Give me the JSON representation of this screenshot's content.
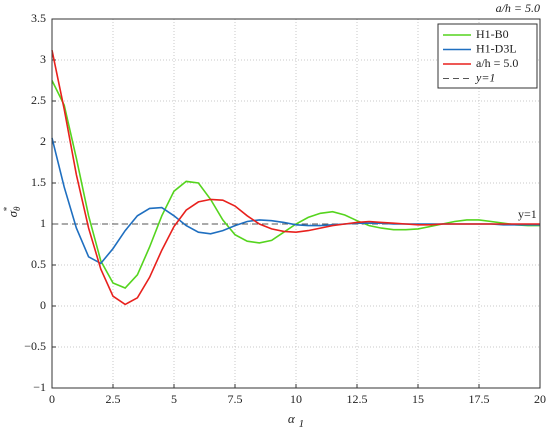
{
  "chart_data": {
    "type": "line",
    "title": "a/h = 5.0",
    "xlabel": {
      "symbol": "α",
      "sub": "1"
    },
    "ylabel": {
      "symbol": "σ",
      "sub": "θ",
      "sup": "*"
    },
    "x": [
      0,
      0.5,
      1,
      1.5,
      2,
      2.5,
      3,
      3.5,
      4,
      4.5,
      5,
      5.5,
      6,
      6.5,
      7,
      7.5,
      8,
      8.5,
      9,
      9.5,
      10,
      10.5,
      11,
      11.5,
      12,
      12.5,
      13,
      13.5,
      14,
      14.5,
      15,
      15.5,
      16,
      16.5,
      17,
      17.5,
      18,
      18.5,
      19,
      19.5,
      20
    ],
    "series": [
      {
        "name": "H1-B0",
        "color": "#55d41e",
        "values": [
          2.75,
          2.45,
          1.8,
          1.1,
          0.55,
          0.28,
          0.22,
          0.38,
          0.72,
          1.1,
          1.4,
          1.52,
          1.5,
          1.3,
          1.05,
          0.87,
          0.79,
          0.77,
          0.8,
          0.9,
          1.0,
          1.08,
          1.13,
          1.15,
          1.11,
          1.04,
          0.98,
          0.95,
          0.93,
          0.93,
          0.94,
          0.97,
          1.0,
          1.03,
          1.05,
          1.05,
          1.03,
          1.01,
          0.99,
          0.98,
          0.98
        ]
      },
      {
        "name": "H1-D3L",
        "color": "#1f6fc0",
        "values": [
          2.05,
          1.45,
          0.95,
          0.6,
          0.52,
          0.7,
          0.92,
          1.1,
          1.19,
          1.2,
          1.1,
          0.98,
          0.9,
          0.88,
          0.92,
          0.98,
          1.03,
          1.05,
          1.04,
          1.02,
          0.99,
          0.98,
          0.98,
          0.99,
          1.0,
          1.01,
          1.01,
          1.01,
          1.0,
          1.0,
          1.0,
          1.0,
          1.0,
          1.0,
          1.0,
          1.0,
          1.0,
          0.99,
          0.99,
          0.99,
          0.99
        ]
      },
      {
        "name": "a/h = 5.0",
        "color": "#e8211d",
        "values": [
          3.12,
          2.4,
          1.6,
          0.95,
          0.45,
          0.12,
          0.02,
          0.1,
          0.35,
          0.68,
          0.97,
          1.17,
          1.27,
          1.3,
          1.29,
          1.22,
          1.1,
          1.0,
          0.94,
          0.91,
          0.9,
          0.92,
          0.95,
          0.98,
          1.0,
          1.02,
          1.03,
          1.02,
          1.01,
          1.0,
          0.99,
          0.99,
          1.0,
          1.0,
          1.0,
          1.0,
          1.0,
          1.0,
          1.0,
          1.0,
          1.0
        ]
      }
    ],
    "reference_line": {
      "name": "y=1",
      "value": 1,
      "color": "#555555",
      "annotation": "y=1"
    },
    "xlim": [
      0,
      20
    ],
    "xticks": [
      0,
      2.5,
      5,
      7.5,
      10,
      12.5,
      15,
      17.5,
      20
    ],
    "ylim": [
      -1,
      3.5
    ],
    "yticks": [
      {
        "value": -1,
        "label": "−1"
      },
      {
        "value": -0.5,
        "label": "−0.5"
      },
      0,
      0.5,
      1,
      1.5,
      2,
      2.5,
      3,
      3.5
    ],
    "grid": true,
    "legend": "top-right"
  }
}
